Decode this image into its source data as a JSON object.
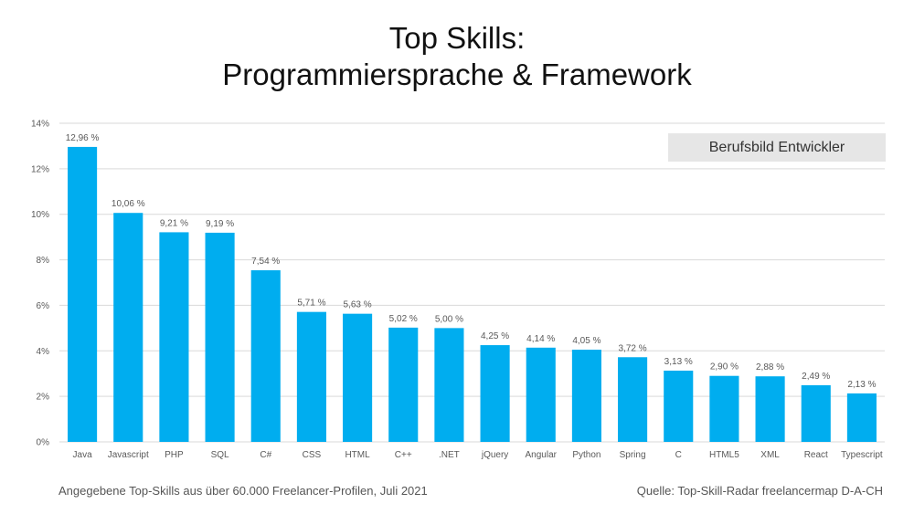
{
  "header": {
    "title_line1": "Top Skills:",
    "title_line2": "Programmiersprache & Framework"
  },
  "badge": {
    "label": "Berufsbild Entwickler",
    "background": "#E6E6E6"
  },
  "footer": {
    "left": "Angegebene Top-Skills aus über 60.000 Freelancer-Profilen, Juli 2021",
    "right": "Quelle: Top-Skill-Radar freelancermap D-A-CH"
  },
  "colors": {
    "bar": "#00ADEF",
    "grid": "#D9D9D9",
    "axis_text": "#595959"
  },
  "chart_data": {
    "type": "bar",
    "title": "Top Skills: Programmiersprache & Framework",
    "categories": [
      "Java",
      "Javascript",
      "PHP",
      "SQL",
      "C#",
      "CSS",
      "HTML",
      "C++",
      ".NET",
      "jQuery",
      "Angular",
      "Python",
      "Spring",
      "C",
      "HTML5",
      "XML",
      "React",
      "Typescript"
    ],
    "values": [
      12.96,
      10.06,
      9.21,
      9.19,
      7.54,
      5.71,
      5.63,
      5.02,
      5.0,
      4.25,
      4.14,
      4.05,
      3.72,
      3.13,
      2.9,
      2.88,
      2.49,
      2.13
    ],
    "value_labels": [
      "12,96 %",
      "10,06 %",
      "9,21 %",
      "9,19 %",
      "7,54 %",
      "5,71 %",
      "5,63 %",
      "5,02 %",
      "5,00 %",
      "4,25 %",
      "4,14 %",
      "4,05 %",
      "3,72 %",
      "3,13 %",
      "2,90 %",
      "2,88 %",
      "2,49 %",
      "2,13 %"
    ],
    "y_ticks": [
      0,
      2,
      4,
      6,
      8,
      10,
      12,
      14
    ],
    "y_tick_labels": [
      "0%",
      "2%",
      "4%",
      "6%",
      "8%",
      "10%",
      "12%",
      "14%"
    ],
    "ylim": [
      0,
      14
    ],
    "grid": true
  }
}
